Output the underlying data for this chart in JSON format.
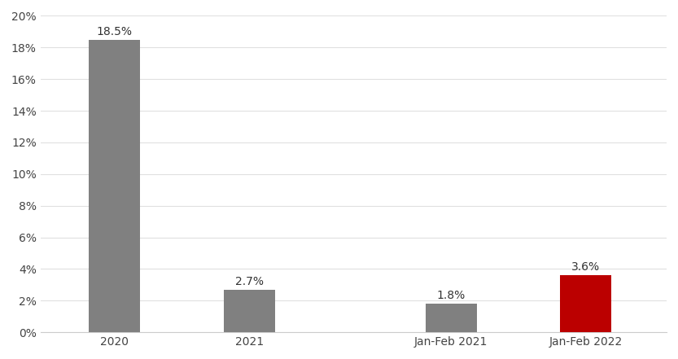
{
  "categories": [
    "2020",
    "2021",
    "Jan-Feb 2021",
    "Jan-Feb 2022"
  ],
  "values": [
    18.5,
    2.7,
    1.8,
    3.6
  ],
  "bar_colors": [
    "#808080",
    "#808080",
    "#808080",
    "#bb0000"
  ],
  "bar_labels": [
    "18.5%",
    "2.7%",
    "1.8%",
    "3.6%"
  ],
  "x_positions": [
    0,
    1,
    2.5,
    3.5
  ],
  "xlim": [
    -0.55,
    4.1
  ],
  "ylim": [
    0,
    20
  ],
  "yticks": [
    0,
    2,
    4,
    6,
    8,
    10,
    12,
    14,
    16,
    18,
    20
  ],
  "background_color": "#ffffff",
  "grid_color": "#e0e0e0",
  "label_fontsize": 10,
  "tick_fontsize": 10,
  "bar_width": 0.38
}
